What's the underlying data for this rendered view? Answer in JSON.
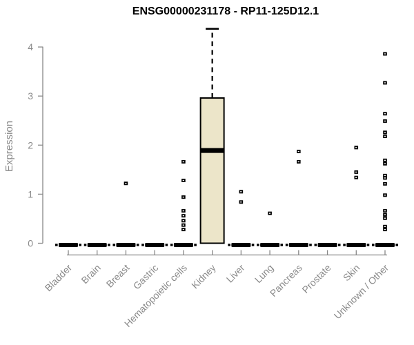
{
  "chart_data": {
    "type": "box",
    "title": "ENSG00000231178 - RP11-125D12.1",
    "ylabel": "Expression",
    "xlabel": "",
    "ylim": [
      0,
      4.4
    ],
    "yticks": [
      0,
      1,
      2,
      3,
      4
    ],
    "grid": false,
    "legend": "none",
    "categories": [
      "Bladder",
      "Brain",
      "Breast",
      "Gastric",
      "Hematopoietic cells",
      "Kidney",
      "Liver",
      "Lung",
      "Pancreas",
      "Prostate",
      "Skin",
      "Unknown / Other"
    ],
    "boxes": [
      {
        "category": "Bladder",
        "q1": 0,
        "median": 0,
        "q3": 0,
        "whisker_low": 0,
        "whisker_high": 0,
        "outliers": []
      },
      {
        "category": "Brain",
        "q1": 0,
        "median": 0,
        "q3": 0,
        "whisker_low": 0,
        "whisker_high": 0,
        "outliers": []
      },
      {
        "category": "Breast",
        "q1": 0,
        "median": 0,
        "q3": 0,
        "whisker_low": 0,
        "whisker_high": 0,
        "outliers": [
          1.22
        ]
      },
      {
        "category": "Gastric",
        "q1": 0,
        "median": 0,
        "q3": 0,
        "whisker_low": 0,
        "whisker_high": 0,
        "outliers": []
      },
      {
        "category": "Hematopoietic cells",
        "q1": 0,
        "median": 0,
        "q3": 0,
        "whisker_low": 0,
        "whisker_high": 0,
        "outliers": [
          1.66,
          1.28,
          0.94,
          0.66,
          0.56,
          0.46,
          0.37,
          0.28
        ]
      },
      {
        "category": "Kidney",
        "q1": 0,
        "median": 1.89,
        "q3": 2.96,
        "whisker_low": 0,
        "whisker_high": 4.37,
        "outliers": []
      },
      {
        "category": "Liver",
        "q1": 0,
        "median": 0,
        "q3": 0,
        "whisker_low": 0,
        "whisker_high": 0,
        "outliers": [
          1.05,
          0.84
        ]
      },
      {
        "category": "Lung",
        "q1": 0,
        "median": 0,
        "q3": 0,
        "whisker_low": 0,
        "whisker_high": 0,
        "outliers": [
          0.61
        ]
      },
      {
        "category": "Pancreas",
        "q1": 0,
        "median": 0,
        "q3": 0,
        "whisker_low": 0,
        "whisker_high": 0,
        "outliers": [
          1.87,
          1.66
        ]
      },
      {
        "category": "Prostate",
        "q1": 0,
        "median": 0,
        "q3": 0,
        "whisker_low": 0,
        "whisker_high": 0,
        "outliers": []
      },
      {
        "category": "Skin",
        "q1": 0,
        "median": 0,
        "q3": 0,
        "whisker_low": 0,
        "whisker_high": 0,
        "outliers": [
          1.95,
          1.45,
          1.34
        ]
      },
      {
        "category": "Unknown / Other",
        "q1": 0,
        "median": 0,
        "q3": 0,
        "whisker_low": 0,
        "whisker_high": 0,
        "outliers": [
          3.86,
          3.27,
          2.64,
          2.49,
          2.26,
          2.18,
          1.69,
          1.62,
          1.38,
          1.33,
          1.21,
          0.98,
          0.66,
          0.58,
          0.51,
          0.34,
          0.28
        ]
      }
    ],
    "colors": {
      "background": "#ffffff",
      "box_fill": "#ece5c9",
      "box_stroke": "#000000",
      "median": "#000000",
      "whisker": "#000000",
      "outlier": "#000000",
      "axis": "#878787",
      "tick_label": "#8a8a8a",
      "title": "#000000"
    }
  }
}
